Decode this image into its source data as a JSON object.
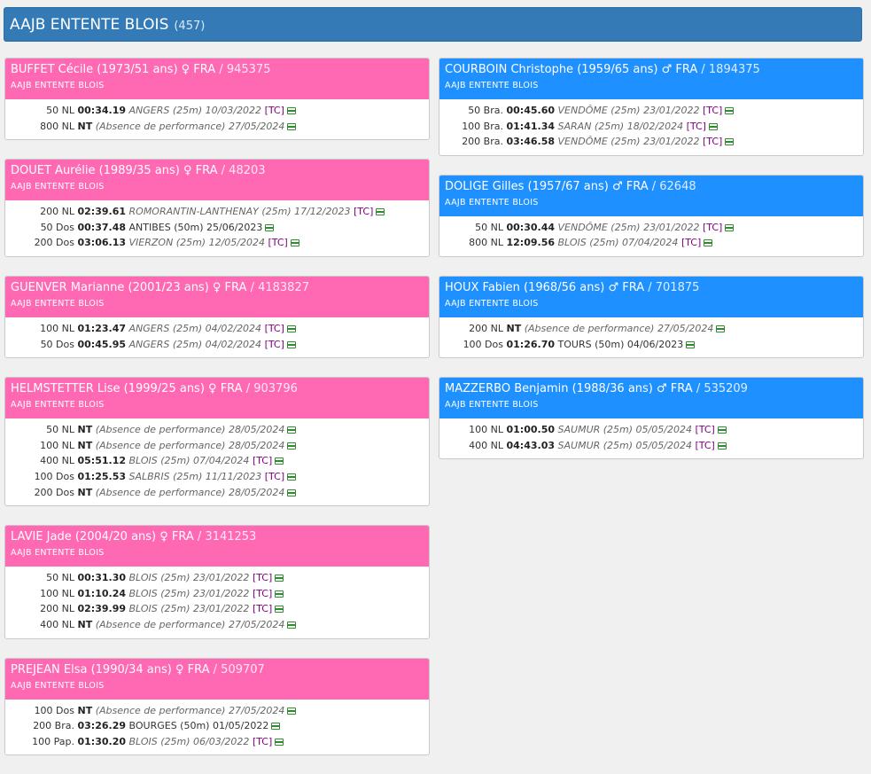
{
  "header": {
    "title": "AAJB ENTENTE BLOIS",
    "count": "(457)"
  },
  "columns": [
    {
      "id": "colL",
      "evw": 72,
      "swimmers": [
        {
          "color": "pink",
          "name": "BUFFET Cécile (1973/51 ans) ♀ FRA",
          "license": "/ 945375",
          "club": "AAJB ENTENTE BLOIS",
          "results": [
            {
              "event": "50 NL",
              "time": "00:34.19",
              "place": "ANGERS (25m) 10/03/2022",
              "italic": true,
              "tc": "[TC]"
            },
            {
              "event": "800 NL",
              "time": "NT",
              "place": "(Absence de performance) 27/05/2024",
              "italic": true,
              "tc": ""
            }
          ]
        },
        {
          "color": "pink",
          "name": "DOUET Aurélie (1989/35 ans) ♀ FRA",
          "license": "/ 48203",
          "club": "AAJB ENTENTE BLOIS",
          "results": [
            {
              "event": "200 NL",
              "time": "02:39.61",
              "place": "ROMORANTIN-LANTHENAY (25m) 17/12/2023",
              "italic": true,
              "tc": "[TC]"
            },
            {
              "event": "50 Dos",
              "time": "00:37.48",
              "place": "ANTIBES (50m) 25/06/2023",
              "italic": false,
              "tc": ""
            },
            {
              "event": "200 Dos",
              "time": "03:06.13",
              "place": "VIERZON (25m) 12/05/2024",
              "italic": true,
              "tc": "[TC]"
            }
          ]
        },
        {
          "color": "pink",
          "name": "GUENVER Marianne (2001/23 ans) ♀ FRA",
          "license": "/ 4183827",
          "club": "AAJB ENTENTE BLOIS",
          "results": [
            {
              "event": "100 NL",
              "time": "01:23.47",
              "place": "ANGERS (25m) 04/02/2024",
              "italic": true,
              "tc": "[TC]"
            },
            {
              "event": "50 Dos",
              "time": "00:45.95",
              "place": "ANGERS (25m) 04/02/2024",
              "italic": true,
              "tc": "[TC]"
            }
          ]
        },
        {
          "color": "pink",
          "name": "HELMSTETTER Lise (1999/25 ans) ♀ FRA",
          "license": "/ 903796",
          "club": "AAJB ENTENTE BLOIS",
          "results": [
            {
              "event": "50 NL",
              "time": "NT",
              "place": "(Absence de performance) 28/05/2024",
              "italic": true,
              "tc": ""
            },
            {
              "event": "100 NL",
              "time": "NT",
              "place": "(Absence de performance) 28/05/2024",
              "italic": true,
              "tc": ""
            },
            {
              "event": "400 NL",
              "time": "05:51.12",
              "place": "BLOIS (25m) 07/04/2024",
              "italic": true,
              "tc": "[TC]"
            },
            {
              "event": "100 Dos",
              "time": "01:25.53",
              "place": "SALBRIS (25m) 11/11/2023",
              "italic": true,
              "tc": "[TC]"
            },
            {
              "event": "200 Dos",
              "time": "NT",
              "place": "(Absence de performance) 28/05/2024",
              "italic": true,
              "tc": ""
            }
          ]
        },
        {
          "color": "pink",
          "name": "LAVIE Jade (2004/20 ans) ♀ FRA",
          "license": "/ 3141253",
          "club": "AAJB ENTENTE BLOIS",
          "results": [
            {
              "event": "50 NL",
              "time": "00:31.30",
              "place": "BLOIS (25m) 23/01/2022",
              "italic": true,
              "tc": "[TC]"
            },
            {
              "event": "100 NL",
              "time": "01:10.24",
              "place": "BLOIS (25m) 23/01/2022",
              "italic": true,
              "tc": "[TC]"
            },
            {
              "event": "200 NL",
              "time": "02:39.99",
              "place": "BLOIS (25m) 23/01/2022",
              "italic": true,
              "tc": "[TC]"
            },
            {
              "event": "400 NL",
              "time": "NT",
              "place": "(Absence de performance) 27/05/2024",
              "italic": true,
              "tc": ""
            }
          ]
        },
        {
          "color": "pink",
          "name": "PREJEAN Elsa (1990/34 ans) ♀ FRA",
          "license": "/ 509707",
          "club": "AAJB ENTENTE BLOIS",
          "results": [
            {
              "event": "100 Dos",
              "time": "NT",
              "place": "(Absence de performance) 27/05/2024",
              "italic": true,
              "tc": ""
            },
            {
              "event": "200 Bra.",
              "time": "03:26.29",
              "place": "BOURGES (50m) 01/05/2022",
              "italic": false,
              "tc": ""
            },
            {
              "event": "100 Pap.",
              "time": "01:30.20",
              "place": "BLOIS (25m) 06/03/2022",
              "italic": true,
              "tc": "[TC]"
            }
          ]
        }
      ]
    },
    {
      "id": "colR",
      "evw": 66,
      "swimmers": [
        {
          "color": "blue",
          "name": "COURBOIN Christophe (1959/65 ans) ♂ FRA",
          "license": "/ 1894375",
          "club": "AAJB ENTENTE BLOIS",
          "results": [
            {
              "event": "50 Bra.",
              "time": "00:45.60",
              "place": "VENDÔME (25m) 23/01/2022",
              "italic": true,
              "tc": "[TC]"
            },
            {
              "event": "100 Bra.",
              "time": "01:41.34",
              "place": "SARAN (25m) 18/02/2024",
              "italic": true,
              "tc": "[TC]"
            },
            {
              "event": "200 Bra.",
              "time": "03:46.58",
              "place": "VENDÔME (25m) 23/01/2022",
              "italic": true,
              "tc": "[TC]"
            }
          ]
        },
        {
          "color": "blue",
          "name": "DOLIGE Gilles (1957/67 ans) ♂ FRA",
          "license": "/ 62648",
          "club": "AAJB ENTENTE BLOIS",
          "results": [
            {
              "event": "50 NL",
              "time": "00:30.44",
              "place": "VENDÔME (25m) 23/01/2022",
              "italic": true,
              "tc": "[TC]"
            },
            {
              "event": "800 NL",
              "time": "12:09.56",
              "place": "BLOIS (25m) 07/04/2024",
              "italic": true,
              "tc": "[TC]"
            }
          ]
        },
        {
          "color": "blue",
          "name": "HOUX Fabien (1968/56 ans) ♂ FRA",
          "license": "/ 701875",
          "club": "AAJB ENTENTE BLOIS",
          "results": [
            {
              "event": "200 NL",
              "time": "NT",
              "place": "(Absence de performance) 27/05/2024",
              "italic": true,
              "tc": ""
            },
            {
              "event": "100 Dos",
              "time": "01:26.70",
              "place": "TOURS (50m) 04/06/2023",
              "italic": false,
              "tc": ""
            }
          ]
        },
        {
          "color": "blue",
          "name": "MAZZERBO Benjamin (1988/36 ans) ♂ FRA",
          "license": "/ 535209",
          "club": "AAJB ENTENTE BLOIS",
          "results": [
            {
              "event": "100 NL",
              "time": "01:00.50",
              "place": "SAUMUR (25m) 05/05/2024",
              "italic": true,
              "tc": "[TC]"
            },
            {
              "event": "400 NL",
              "time": "04:43.03",
              "place": "SAUMUR (25m) 05/05/2024",
              "italic": true,
              "tc": "[TC]"
            }
          ]
        }
      ]
    }
  ]
}
